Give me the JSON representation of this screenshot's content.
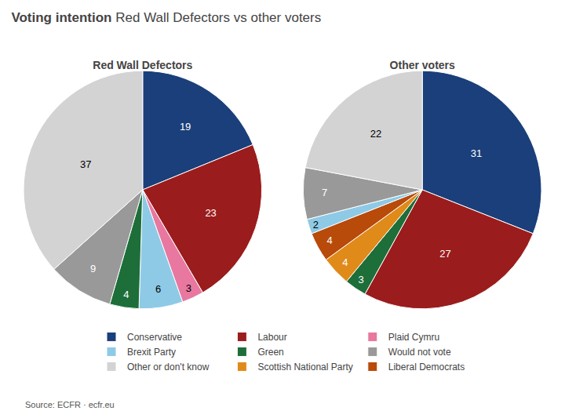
{
  "title": "Voting intention",
  "subtitle": "Red Wall Defectors vs other voters",
  "annotations": [
    "Source: ECFR · ecfr.eu"
  ],
  "legend": "bottom",
  "chart_data": [
    {
      "type": "pie",
      "title": "Red Wall Defectors",
      "categories": [
        "Conservative",
        "Labour",
        "Plaid Cymru",
        "Brexit Party",
        "Green",
        "Would not vote",
        "Other or don't know"
      ],
      "values": [
        19,
        23,
        3,
        6,
        4,
        9,
        37
      ],
      "colors": [
        "#1a3f7a",
        "#9b1c1c",
        "#e878a0",
        "#8ecae6",
        "#1e6e3a",
        "#999999",
        "#d3d3d3"
      ],
      "data_labels": true
    },
    {
      "type": "pie",
      "title": "Other voters",
      "categories": [
        "Conservative",
        "Labour",
        "Green",
        "Scottish National Party",
        "Liberal Democrats",
        "Brexit Party",
        "Would not vote",
        "Other or don't know"
      ],
      "values": [
        31,
        27,
        3,
        4,
        4,
        2,
        7,
        22
      ],
      "colors": [
        "#1a3f7a",
        "#9b1c1c",
        "#1e6e3a",
        "#e08a1a",
        "#b84a0a",
        "#8ecae6",
        "#999999",
        "#d3d3d3"
      ],
      "data_labels": true
    }
  ]
}
